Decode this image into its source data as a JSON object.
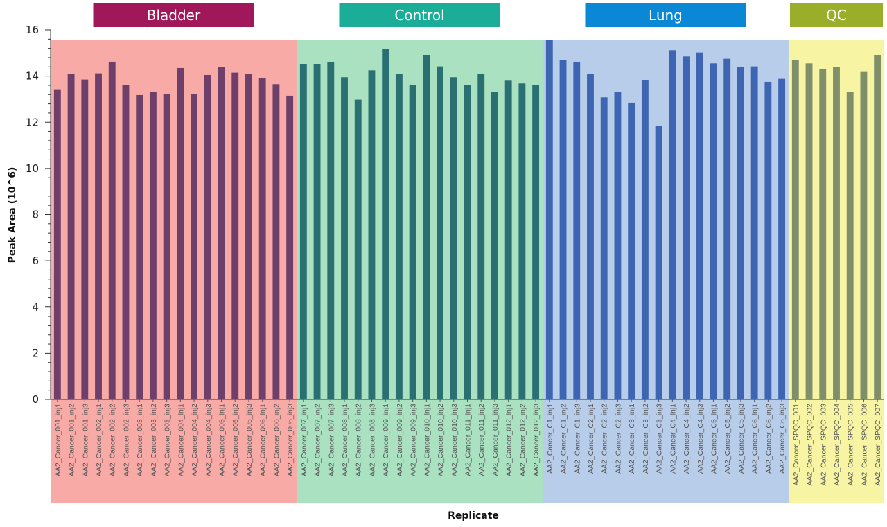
{
  "chart_data": {
    "type": "bar",
    "title": "",
    "xlabel": "Replicate",
    "ylabel": "Peak Area (10^6)",
    "ylim": [
      0,
      16
    ],
    "yticks": [
      0,
      2,
      4,
      6,
      8,
      10,
      12,
      14,
      16
    ],
    "grid": false,
    "categories": [
      "AA2_Cancer_001_inj1",
      "AA2_Cancer_001_inj2",
      "AA2_Cancer_001_inj3",
      "AA2_Cancer_002_inj1",
      "AA2_Cancer_002_inj2",
      "AA2_Cancer_002_inj3",
      "AA2_Cancer_003_inj1",
      "AA2_Cancer_003_inj2",
      "AA2_Cancer_003_inj3",
      "AA2_Cancer_004_inj1",
      "AA2_Cancer_004_inj2",
      "AA2_Cancer_004_inj3",
      "AA2_Cancer_005_inj1",
      "AA2_Cancer_005_inj2",
      "AA2_Cancer_005_inj3",
      "AA2_Cancer_006_inj1",
      "AA2_Cancer_006_inj2",
      "AA2_Cancer_006_inj3",
      "AA2_Cancer_007_inj1",
      "AA2_Cancer_007_inj2",
      "AA2_Cancer_007_inj3",
      "AA2_Cancer_008_inj1",
      "AA2_Cancer_008_inj2",
      "AA2_Cancer_008_inj3",
      "AA2_Cancer_009_inj1",
      "AA2_Cancer_009_inj2",
      "AA2_Cancer_009_inj3",
      "AA2_Cancer_010_inj1",
      "AA2_Cancer_010_inj2",
      "AA2_Cancer_010_inj3",
      "AA2_Cancer_011_inj1",
      "AA2_Cancer_011_inj2",
      "AA2_Cancer_011_inj3",
      "AA2_Cancer_012_inj1",
      "AA2_Cancer_012_inj2",
      "AA2_Cancer_012_inj3",
      "AA2_Cancer_C1_inj1",
      "AA2_Cancer_C1_inj2",
      "AA2_Cancer_C1_inj3",
      "AA2_Cancer_C2_inj1",
      "AA2_Cancer_C2_inj2",
      "AA2_Cancer_C2_inj3",
      "AA2_Cancer_C3_inj1",
      "AA2_Cancer_C3_inj2",
      "AA2_Cancer_C3_inj3",
      "AA2_Cancer_C4_inj1",
      "AA2_Cancer_C4_inj2",
      "AA2_Cancer_C4_inj3",
      "AA2_Cancer_C5_inj1",
      "AA2_Cancer_C5_inj2",
      "AA2_Cancer_C5_inj3",
      "AA2_Cancer_C6_inj1",
      "AA2_Cancer_C6_inj2",
      "AA2_Cancer_C6_inj3",
      "AA2_Cancer_SPQC_001",
      "AA2_Cancer_SPQC_002",
      "AA2_Cancer_SPQC_003",
      "AA2_Cancer_SPQC_004",
      "AA2_Cancer_SPQC_005",
      "AA2_Cancer_SPQC_006",
      "AA2_Cancer_SPQC_007"
    ],
    "values": [
      13.4,
      14.08,
      13.85,
      14.12,
      14.62,
      13.62,
      13.18,
      13.32,
      13.22,
      14.35,
      13.22,
      14.05,
      14.38,
      14.15,
      14.08,
      13.9,
      13.65,
      13.15,
      14.52,
      14.5,
      14.6,
      13.95,
      12.98,
      14.25,
      15.18,
      14.08,
      13.6,
      14.92,
      14.42,
      13.95,
      13.62,
      14.1,
      13.32,
      13.8,
      13.68,
      13.6,
      15.55,
      14.68,
      14.62,
      14.08,
      13.08,
      13.3,
      12.85,
      13.82,
      11.85,
      15.12,
      14.85,
      15.02,
      14.55,
      14.75,
      14.38,
      14.42,
      13.75,
      13.88,
      14.68,
      14.55,
      14.32,
      14.38,
      13.3,
      14.18,
      14.9
    ],
    "groups": [
      {
        "name": "Bladder",
        "start": 0,
        "end": 17,
        "bg_color": "#f7aaa6",
        "bar_color": "#6e3f6a",
        "header_color": "#a1185a"
      },
      {
        "name": "Control",
        "start": 18,
        "end": 35,
        "bg_color": "#a9e1c1",
        "bar_color": "#2a6f72",
        "header_color": "#1aae98"
      },
      {
        "name": "Lung",
        "start": 36,
        "end": 53,
        "bg_color": "#b8cde9",
        "bar_color": "#3d65b3",
        "header_color": "#0a88d6"
      },
      {
        "name": "QC",
        "start": 54,
        "end": 60,
        "bg_color": "#f7f5a4",
        "bar_color": "#7e8f6a",
        "header_color": "#9aae2a"
      }
    ]
  }
}
